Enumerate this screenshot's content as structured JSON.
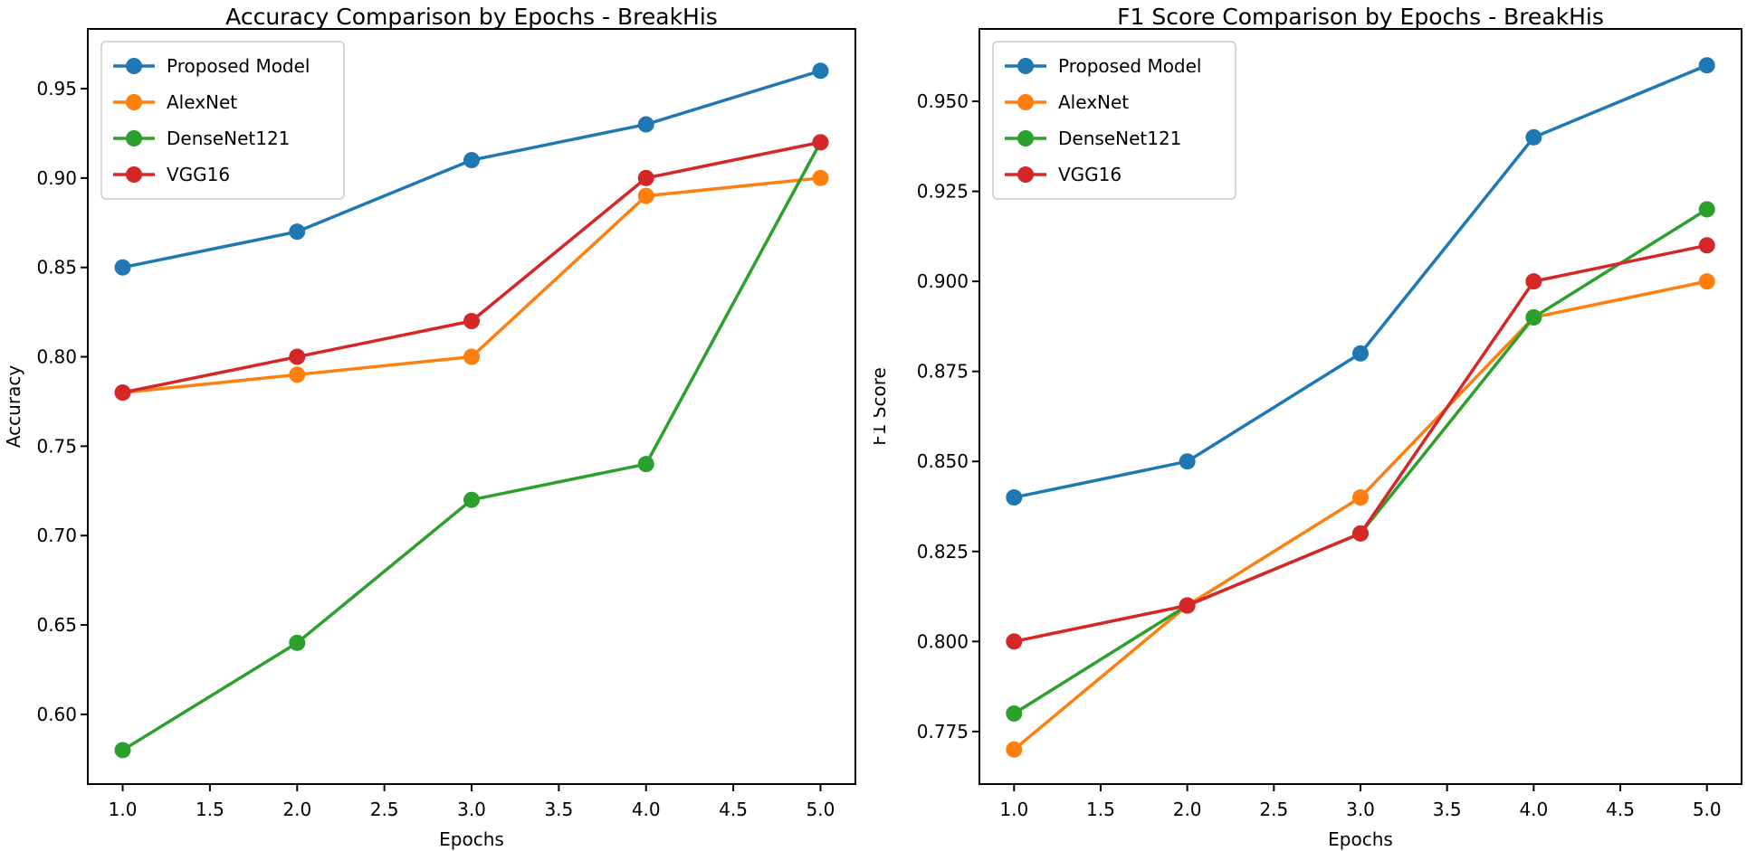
{
  "figure": {
    "background": "#ffffff",
    "text_color": "#000000",
    "spine_color": "#000000",
    "legend_border_color": "#cccccc",
    "legend_background": "#ffffff"
  },
  "chart_data": [
    {
      "type": "line",
      "title": "Accuracy Comparison by Epochs - BreakHis",
      "xlabel": "Epochs",
      "ylabel": "Accuracy",
      "x": [
        1.0,
        2.0,
        3.0,
        4.0,
        5.0
      ],
      "series": [
        {
          "name": "Proposed Model",
          "color": "#1f77b4",
          "values": [
            0.85,
            0.87,
            0.91,
            0.93,
            0.96
          ]
        },
        {
          "name": "AlexNet",
          "color": "#ff7f0e",
          "values": [
            0.78,
            0.79,
            0.8,
            0.89,
            0.9
          ]
        },
        {
          "name": "DenseNet121",
          "color": "#2ca02c",
          "values": [
            0.58,
            0.64,
            0.72,
            0.74,
            0.92
          ]
        },
        {
          "name": "VGG16",
          "color": "#d62728",
          "values": [
            0.78,
            0.8,
            0.82,
            0.9,
            0.92
          ]
        }
      ],
      "xlim": [
        0.8,
        5.2
      ],
      "ylim": [
        0.561,
        0.9834
      ],
      "xtick_labels": [
        "1.0",
        "1.5",
        "2.0",
        "2.5",
        "3.0",
        "3.5",
        "4.0",
        "4.5",
        "5.0"
      ],
      "ytick_labels": [
        "0.60",
        "0.65",
        "0.70",
        "0.75",
        "0.80",
        "0.85",
        "0.90",
        "0.95"
      ],
      "legend_position": "upper left",
      "grid": false
    },
    {
      "type": "line",
      "title": "F1 Score Comparison by Epochs - BreakHis",
      "xlabel": "Epochs",
      "ylabel": "F1 Score",
      "x": [
        1.0,
        2.0,
        3.0,
        4.0,
        5.0
      ],
      "series": [
        {
          "name": "Proposed Model",
          "color": "#1f77b4",
          "values": [
            0.84,
            0.85,
            0.88,
            0.94,
            0.96
          ]
        },
        {
          "name": "AlexNet",
          "color": "#ff7f0e",
          "values": [
            0.77,
            0.81,
            0.84,
            0.89,
            0.9
          ]
        },
        {
          "name": "DenseNet121",
          "color": "#2ca02c",
          "values": [
            0.78,
            0.81,
            0.83,
            0.89,
            0.92
          ]
        },
        {
          "name": "VGG16",
          "color": "#d62728",
          "values": [
            0.8,
            0.81,
            0.83,
            0.9,
            0.91
          ]
        }
      ],
      "xlim": [
        0.8,
        5.2
      ],
      "ylim": [
        0.7604,
        0.9701
      ],
      "xtick_labels": [
        "1.0",
        "1.5",
        "2.0",
        "2.5",
        "3.0",
        "3.5",
        "4.0",
        "4.5",
        "5.0"
      ],
      "ytick_labels": [
        "0.775",
        "0.800",
        "0.825",
        "0.850",
        "0.875",
        "0.900",
        "0.925",
        "0.950"
      ],
      "legend_position": "upper left",
      "grid": false
    }
  ]
}
